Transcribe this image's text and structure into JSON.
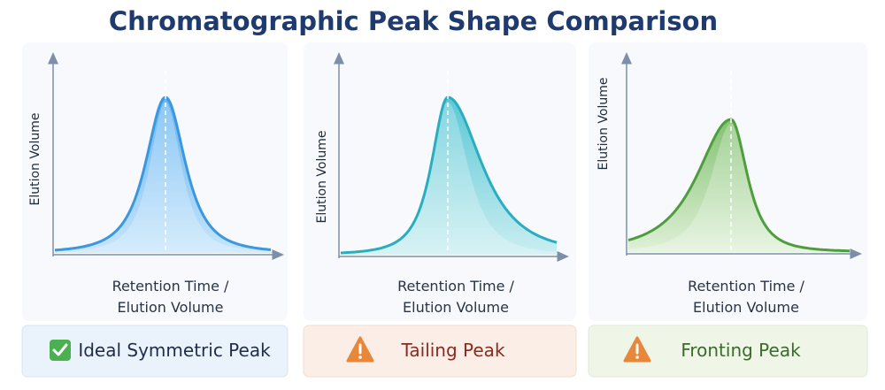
{
  "title": "Chromatographic Peak Shape Comparison",
  "panels": [
    {
      "y_axis_label": "Elution Volume",
      "x_axis_label": [
        "Retention Time /",
        "Elution Volume"
      ],
      "caption": "Ideal Symmetric Peak"
    },
    {
      "y_axis_label": "Elution Volume",
      "x_axis_label": [
        "Retention Time /",
        "Elution Volume"
      ],
      "caption": "Tailing Peak"
    },
    {
      "y_axis_label": "Elution Volume",
      "x_axis_label": [
        "Retention Time /",
        "Elution Volume"
      ],
      "caption": "Fronting Peak"
    }
  ]
}
